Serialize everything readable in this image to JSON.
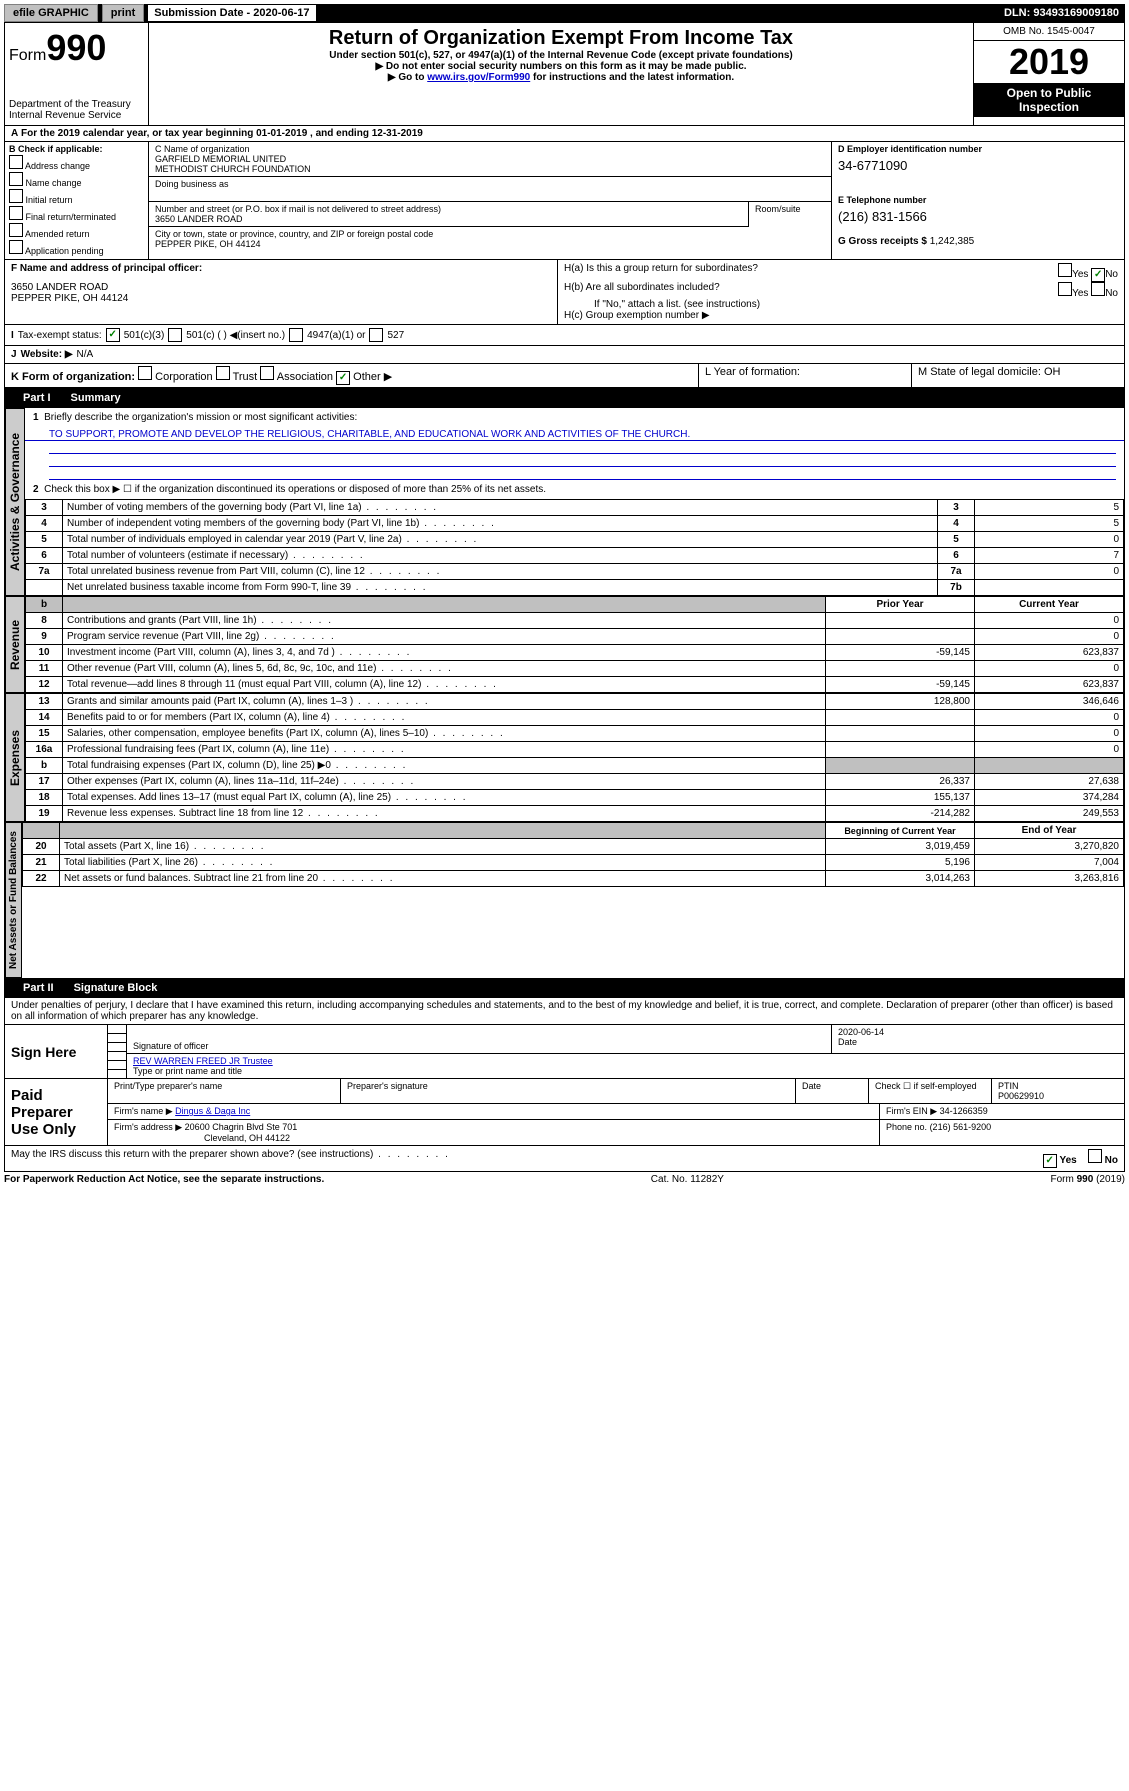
{
  "top": {
    "efile": "efile GRAPHIC",
    "print": "print",
    "submission_label": "Submission Date - 2020-06-17",
    "dln": "DLN: 93493169009180"
  },
  "header": {
    "form_word": "Form",
    "form_num": "990",
    "dept": "Department of the Treasury",
    "irs": "Internal Revenue Service",
    "title": "Return of Organization Exempt From Income Tax",
    "sub1": "Under section 501(c), 527, or 4947(a)(1) of the Internal Revenue Code (except private foundations)",
    "sub2_pre": "▶ Do not enter social security numbers on this form as it may be made public.",
    "sub3_pre": "▶ Go to ",
    "sub3_link": "www.irs.gov/Form990",
    "sub3_post": " for instructions and the latest information.",
    "omb": "OMB No. 1545-0047",
    "year": "2019",
    "open": "Open to Public Inspection"
  },
  "period": {
    "line": "For the 2019 calendar year, or tax year beginning 01-01-2019      , and ending 12-31-2019"
  },
  "boxB": {
    "title": "B Check if applicable:",
    "o1": "Address change",
    "o2": "Name change",
    "o3": "Initial return",
    "o4": "Final return/terminated",
    "o5": "Amended return",
    "o6": "Application pending"
  },
  "boxC": {
    "label_name": "C Name of organization",
    "org1": "GARFIELD MEMORIAL UNITED",
    "org2": "METHODIST CHURCH FOUNDATION",
    "dba_label": "Doing business as",
    "street_label": "Number and street (or P.O. box if mail is not delivered to street address)",
    "roomsuite": "Room/suite",
    "street": "3650 LANDER ROAD",
    "city_label": "City or town, state or province, country, and ZIP or foreign postal code",
    "city": "PEPPER PIKE, OH  44124"
  },
  "boxD": {
    "label": "D Employer identification number",
    "val": "34-6771090"
  },
  "boxE": {
    "label": "E Telephone number",
    "val": "(216) 831-1566"
  },
  "boxG": {
    "label": "G Gross receipts $",
    "val": "1,242,385"
  },
  "boxF": {
    "label": "F Name and address of principal officer:",
    "addr1": "3650 LANDER ROAD",
    "addr2": "PEPPER PIKE, OH  44124"
  },
  "boxH": {
    "a": "H(a)  Is this a group return for subordinates?",
    "b": "H(b)  Are all subordinates included?",
    "b_note": "If \"No,\" attach a list. (see instructions)",
    "c": "H(c)  Group exemption number ▶",
    "yes": "Yes",
    "no": "No"
  },
  "boxI": {
    "label": "Tax-exempt status:",
    "o1": "501(c)(3)",
    "o2": "501(c) (   ) ◀(insert no.)",
    "o3": "4947(a)(1) or",
    "o4": "527"
  },
  "boxJ": {
    "label": "Website: ▶",
    "val": "N/A"
  },
  "boxK": {
    "label": "K Form of organization:",
    "o1": "Corporation",
    "o2": "Trust",
    "o3": "Association",
    "o4": "Other ▶"
  },
  "boxL": {
    "label": "L Year of formation:"
  },
  "boxM": {
    "label": "M State of legal domicile: OH"
  },
  "part1": {
    "label": "Part I",
    "title": "Summary",
    "q1": "Briefly describe the organization's mission or most significant activities:",
    "mission": "TO SUPPORT, PROMOTE AND DEVELOP THE RELIGIOUS, CHARITABLE, AND EDUCATIONAL WORK AND ACTIVITIES OF THE CHURCH.",
    "q2": "Check this box ▶ ☐  if the organization discontinued its operations or disposed of more than 25% of its net assets.",
    "side_gov": "Activities & Governance",
    "side_rev": "Revenue",
    "side_exp": "Expenses",
    "side_net": "Net Assets or Fund Balances"
  },
  "govlines": [
    {
      "n": "3",
      "d": "Number of voting members of the governing body (Part VI, line 1a)",
      "k": "3",
      "v": "5"
    },
    {
      "n": "4",
      "d": "Number of independent voting members of the governing body (Part VI, line 1b)",
      "k": "4",
      "v": "5"
    },
    {
      "n": "5",
      "d": "Total number of individuals employed in calendar year 2019 (Part V, line 2a)",
      "k": "5",
      "v": "0"
    },
    {
      "n": "6",
      "d": "Total number of volunteers (estimate if necessary)",
      "k": "6",
      "v": "7"
    },
    {
      "n": "7a",
      "d": "Total unrelated business revenue from Part VIII, column (C), line 12",
      "k": "7a",
      "v": "0"
    },
    {
      "n": "",
      "d": "Net unrelated business taxable income from Form 990-T, line 39",
      "k": "7b",
      "v": ""
    }
  ],
  "colhdr": {
    "prior": "Prior Year",
    "current": "Current Year",
    "beg": "Beginning of Current Year",
    "end": "End of Year"
  },
  "revlines": [
    {
      "n": "8",
      "d": "Contributions and grants (Part VIII, line 1h)",
      "p": "",
      "c": "0"
    },
    {
      "n": "9",
      "d": "Program service revenue (Part VIII, line 2g)",
      "p": "",
      "c": "0"
    },
    {
      "n": "10",
      "d": "Investment income (Part VIII, column (A), lines 3, 4, and 7d )",
      "p": "-59,145",
      "c": "623,837"
    },
    {
      "n": "11",
      "d": "Other revenue (Part VIII, column (A), lines 5, 6d, 8c, 9c, 10c, and 11e)",
      "p": "",
      "c": "0"
    },
    {
      "n": "12",
      "d": "Total revenue—add lines 8 through 11 (must equal Part VIII, column (A), line 12)",
      "p": "-59,145",
      "c": "623,837"
    }
  ],
  "explines": [
    {
      "n": "13",
      "d": "Grants and similar amounts paid (Part IX, column (A), lines 1–3 )",
      "p": "128,800",
      "c": "346,646"
    },
    {
      "n": "14",
      "d": "Benefits paid to or for members (Part IX, column (A), line 4)",
      "p": "",
      "c": "0"
    },
    {
      "n": "15",
      "d": "Salaries, other compensation, employee benefits (Part IX, column (A), lines 5–10)",
      "p": "",
      "c": "0"
    },
    {
      "n": "16a",
      "d": "Professional fundraising fees (Part IX, column (A), line 11e)",
      "p": "",
      "c": "0"
    },
    {
      "n": "b",
      "d": "Total fundraising expenses (Part IX, column (D), line 25) ▶0",
      "p": "shade",
      "c": "shade"
    },
    {
      "n": "17",
      "d": "Other expenses (Part IX, column (A), lines 11a–11d, 11f–24e)",
      "p": "26,337",
      "c": "27,638"
    },
    {
      "n": "18",
      "d": "Total expenses. Add lines 13–17 (must equal Part IX, column (A), line 25)",
      "p": "155,137",
      "c": "374,284"
    },
    {
      "n": "19",
      "d": "Revenue less expenses. Subtract line 18 from line 12",
      "p": "-214,282",
      "c": "249,553"
    }
  ],
  "netlines": [
    {
      "n": "20",
      "d": "Total assets (Part X, line 16)",
      "p": "3,019,459",
      "c": "3,270,820"
    },
    {
      "n": "21",
      "d": "Total liabilities (Part X, line 26)",
      "p": "5,196",
      "c": "7,004"
    },
    {
      "n": "22",
      "d": "Net assets or fund balances. Subtract line 21 from line 20",
      "p": "3,014,263",
      "c": "3,263,816"
    }
  ],
  "part2": {
    "label": "Part II",
    "title": "Signature Block",
    "perjury": "Under penalties of perjury, I declare that I have examined this return, including accompanying schedules and statements, and to the best of my knowledge and belief, it is true, correct, and complete. Declaration of preparer (other than officer) is based on all information of which preparer has any knowledge."
  },
  "sign": {
    "here": "Sign Here",
    "sig_officer": "Signature of officer",
    "date": "2020-06-14",
    "date_label": "Date",
    "name": "REV WARREN FREED JR Trustee",
    "name_label": "Type or print name and title"
  },
  "paid": {
    "label": "Paid Preparer Use Only",
    "print_label": "Print/Type preparer's name",
    "sig_label": "Preparer's signature",
    "date_label": "Date",
    "check_label": "Check ☐ if self-employed",
    "ptin_label": "PTIN",
    "ptin": "P00629910",
    "firmname_label": "Firm's name    ▶",
    "firmname": "Dingus & Daga Inc",
    "firmein_label": "Firm's EIN ▶",
    "firmein": "34-1266359",
    "firmaddr_label": "Firm's address ▶",
    "firmaddr1": "20600 Chagrin Blvd Ste 701",
    "firmaddr2": "Cleveland, OH  44122",
    "phone_label": "Phone no.",
    "phone": "(216) 561-9200"
  },
  "footer": {
    "discuss": "May the IRS discuss this return with the preparer shown above? (see instructions)",
    "yes": "Yes",
    "no": "No",
    "paperwork": "For Paperwork Reduction Act Notice, see the separate instructions.",
    "cat": "Cat. No. 11282Y",
    "form": "Form 990 (2019)"
  }
}
